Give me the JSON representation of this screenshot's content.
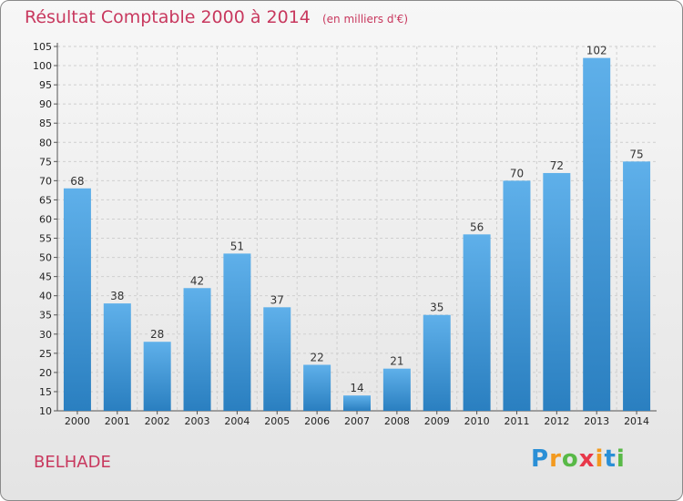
{
  "chart_data": {
    "type": "bar",
    "title": "Résultat Comptable 2000 à 2014",
    "subtitle": "(en milliers d'€)",
    "categories": [
      "2000",
      "2001",
      "2002",
      "2003",
      "2004",
      "2005",
      "2006",
      "2007",
      "2008",
      "2009",
      "2010",
      "2011",
      "2012",
      "2013",
      "2014"
    ],
    "values": [
      68,
      38,
      28,
      42,
      51,
      37,
      22,
      14,
      21,
      35,
      56,
      70,
      72,
      102,
      75
    ],
    "ylim": [
      10,
      105
    ],
    "yticks": [
      10,
      15,
      20,
      25,
      30,
      35,
      40,
      45,
      50,
      55,
      60,
      65,
      70,
      75,
      80,
      85,
      90,
      95,
      100,
      105
    ],
    "xlabel": "",
    "ylabel": "",
    "grid": true
  },
  "place_name": "BELHADE",
  "logo": {
    "letters": [
      "P",
      "r",
      "o",
      "x",
      "i",
      "t",
      "i"
    ],
    "colors": [
      "#2a8fd6",
      "#f39a1f",
      "#58b947",
      "#e8384a",
      "#f39a1f",
      "#2a8fd6",
      "#58b947"
    ]
  },
  "colors": {
    "bar_top": "#5fb0ea",
    "bar_bottom": "#2a7fc0",
    "title": "#c8385e",
    "grid": "#cfcfcf"
  }
}
